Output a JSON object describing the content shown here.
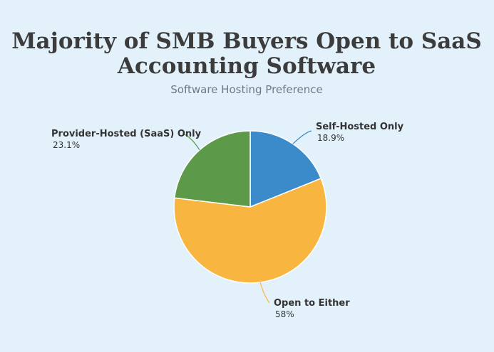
{
  "chart_data": {
    "type": "pie",
    "title": [
      "Majority of SMB Buyers Open to SaaS",
      "Accounting Software"
    ],
    "subtitle": "Software Hosting Preference",
    "categories": [
      "Self-Hosted Only",
      "Open to Either",
      "Provider-Hosted (SaaS) Only"
    ],
    "values": [
      18.9,
      58,
      23.1
    ],
    "value_labels": [
      "18.9%",
      "58%",
      "23.1%"
    ],
    "colors": [
      "#3b8bcb",
      "#f8b641",
      "#5c9a4a"
    ]
  }
}
